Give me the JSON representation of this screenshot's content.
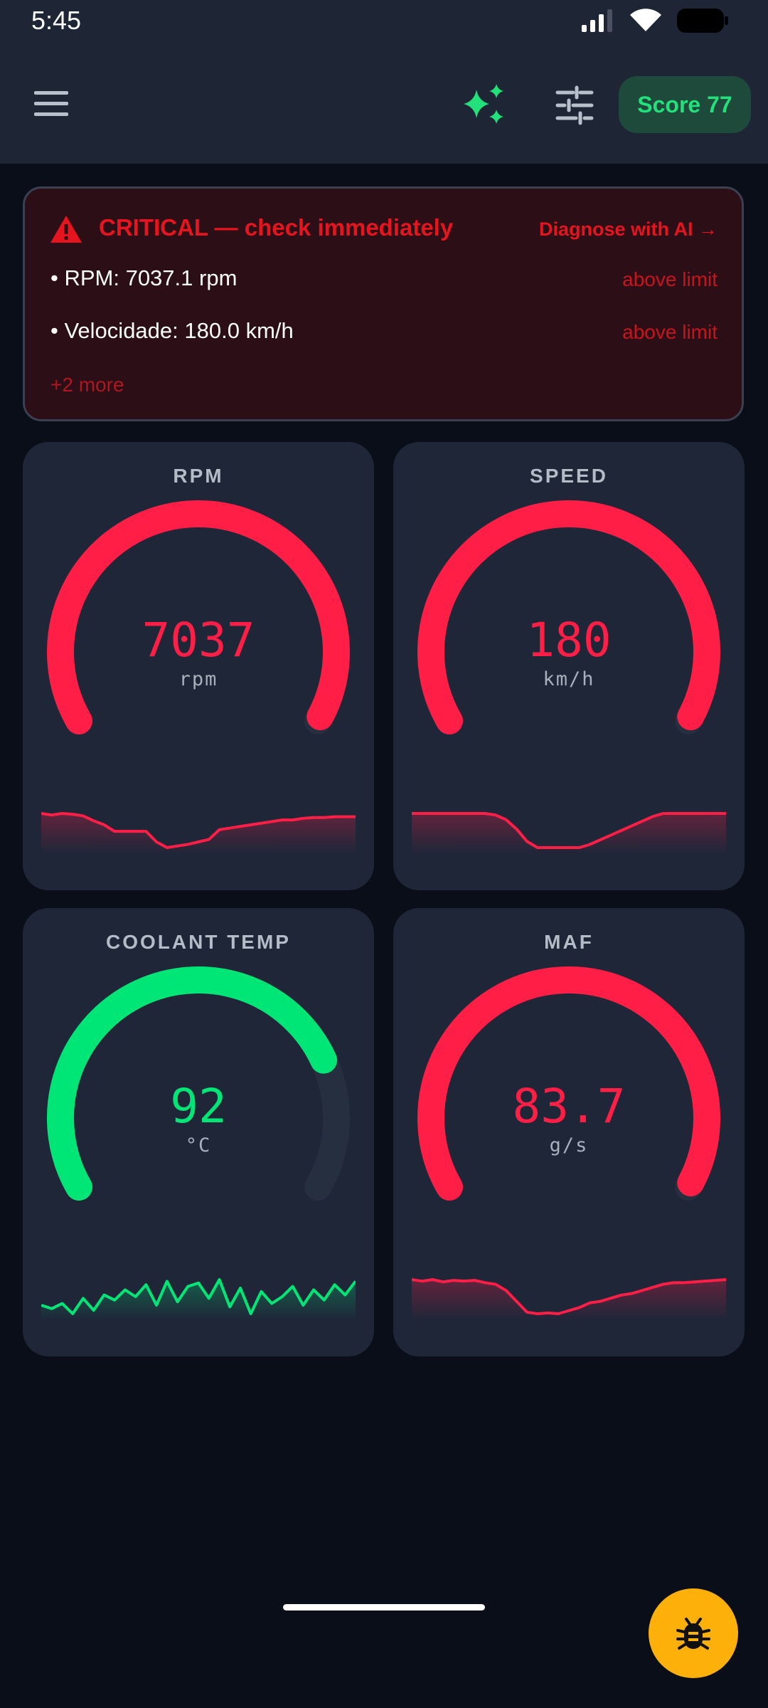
{
  "status_bar": {
    "time": "5:45"
  },
  "app_bar": {
    "score_label": "Score 77",
    "accent_color": "#22e07a"
  },
  "alert": {
    "title": "CRITICAL — check immediately",
    "action": "Diagnose with AI →",
    "items": [
      {
        "text": "• RPM: 7037.1 rpm",
        "note": "above limit"
      },
      {
        "text": "• Velocidade: 180.0 km/h",
        "note": "above limit"
      }
    ],
    "more": "+2 more"
  },
  "gauges": [
    {
      "title": "RPM",
      "value": "7037",
      "unit": "rpm",
      "fill": 1.0,
      "color": "#ff1e46",
      "spark_color": "#ff1e46",
      "sparkline": [
        0,
        2,
        0,
        1,
        3,
        9,
        14,
        22,
        22,
        22,
        22,
        35,
        42,
        40,
        38,
        35,
        32,
        20,
        18,
        16,
        14,
        12,
        10,
        8,
        8,
        6,
        5,
        5,
        4,
        4,
        4
      ]
    },
    {
      "title": "SPEED",
      "value": "180",
      "unit": "km/h",
      "fill": 1.0,
      "color": "#ff1e46",
      "spark_color": "#ff1e46",
      "sparkline": [
        0,
        0,
        0,
        0,
        0,
        0,
        0,
        0,
        2,
        8,
        20,
        36,
        44,
        44,
        44,
        44,
        44,
        40,
        34,
        28,
        22,
        16,
        10,
        4,
        0,
        0,
        0,
        0,
        0,
        0,
        0
      ]
    },
    {
      "title": "COOLANT TEMP",
      "value": "92",
      "unit": "°C",
      "fill": 0.78,
      "color": "#00e676",
      "spark_color": "#00e676",
      "sparkline": [
        30,
        34,
        28,
        40,
        22,
        36,
        18,
        24,
        12,
        20,
        6,
        30,
        2,
        26,
        8,
        4,
        22,
        0,
        32,
        10,
        40,
        14,
        28,
        20,
        8,
        30,
        12,
        24,
        6,
        18,
        2
      ]
    },
    {
      "title": "MAF",
      "value": "83.7",
      "unit": "g/s",
      "fill": 1.0,
      "color": "#ff1e46",
      "spark_color": "#ff1e46",
      "sparkline": [
        0,
        2,
        0,
        3,
        1,
        2,
        1,
        4,
        6,
        14,
        28,
        42,
        44,
        43,
        44,
        40,
        36,
        30,
        28,
        24,
        20,
        18,
        14,
        10,
        6,
        4,
        4,
        3,
        2,
        1,
        0
      ]
    }
  ]
}
